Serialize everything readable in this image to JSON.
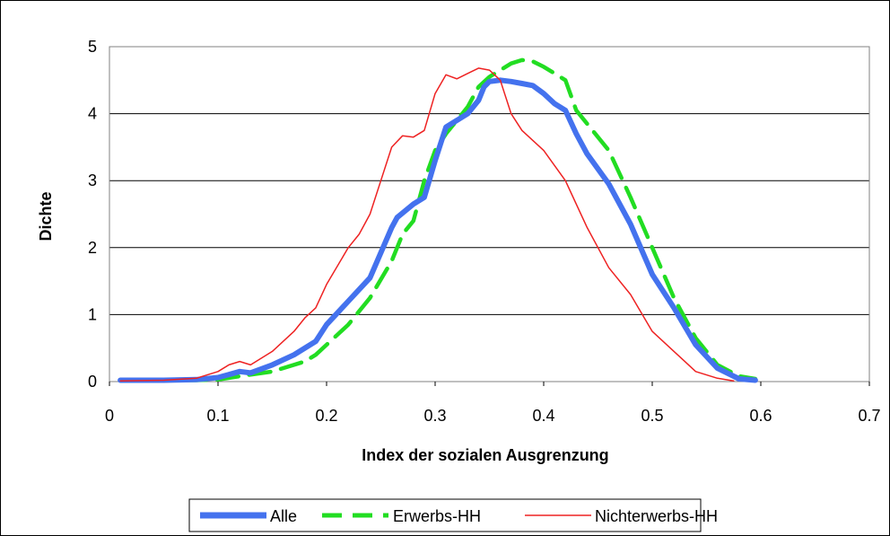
{
  "chart_data": {
    "type": "line",
    "title": "",
    "xlabel": "Index der sozialen Ausgrenzung",
    "ylabel": "Dichte",
    "xlim": [
      0,
      0.7
    ],
    "ylim": [
      0,
      5
    ],
    "xticks": [
      "0",
      "0.1",
      "0.2",
      "0.3",
      "0.4",
      "0.5",
      "0.6",
      "0.7"
    ],
    "yticks": [
      "0",
      "1",
      "2",
      "3",
      "4",
      "5"
    ],
    "grid": "horizontal",
    "legend_position": "bottom",
    "series": [
      {
        "name": "Alle",
        "color": "#4472ee",
        "style": "solid-thick",
        "points": [
          [
            0.01,
            0.02
          ],
          [
            0.05,
            0.02
          ],
          [
            0.08,
            0.03
          ],
          [
            0.1,
            0.06
          ],
          [
            0.12,
            0.15
          ],
          [
            0.13,
            0.13
          ],
          [
            0.15,
            0.25
          ],
          [
            0.17,
            0.4
          ],
          [
            0.18,
            0.5
          ],
          [
            0.19,
            0.6
          ],
          [
            0.2,
            0.85
          ],
          [
            0.22,
            1.2
          ],
          [
            0.24,
            1.55
          ],
          [
            0.26,
            2.3
          ],
          [
            0.265,
            2.45
          ],
          [
            0.28,
            2.65
          ],
          [
            0.29,
            2.75
          ],
          [
            0.3,
            3.3
          ],
          [
            0.31,
            3.8
          ],
          [
            0.32,
            3.9
          ],
          [
            0.33,
            4.0
          ],
          [
            0.34,
            4.2
          ],
          [
            0.345,
            4.4
          ],
          [
            0.35,
            4.48
          ],
          [
            0.36,
            4.5
          ],
          [
            0.37,
            4.48
          ],
          [
            0.38,
            4.45
          ],
          [
            0.39,
            4.42
          ],
          [
            0.4,
            4.3
          ],
          [
            0.41,
            4.15
          ],
          [
            0.42,
            4.05
          ],
          [
            0.43,
            3.7
          ],
          [
            0.44,
            3.4
          ],
          [
            0.46,
            2.95
          ],
          [
            0.48,
            2.35
          ],
          [
            0.5,
            1.6
          ],
          [
            0.52,
            1.1
          ],
          [
            0.54,
            0.55
          ],
          [
            0.56,
            0.2
          ],
          [
            0.58,
            0.04
          ],
          [
            0.595,
            0.02
          ]
        ]
      },
      {
        "name": "Erwerbs-HH",
        "color": "#22dd22",
        "style": "dashed-thick",
        "points": [
          [
            0.01,
            0.02
          ],
          [
            0.08,
            0.02
          ],
          [
            0.1,
            0.03
          ],
          [
            0.12,
            0.08
          ],
          [
            0.15,
            0.15
          ],
          [
            0.18,
            0.3
          ],
          [
            0.19,
            0.4
          ],
          [
            0.2,
            0.55
          ],
          [
            0.22,
            0.85
          ],
          [
            0.24,
            1.25
          ],
          [
            0.26,
            1.8
          ],
          [
            0.27,
            2.2
          ],
          [
            0.28,
            2.4
          ],
          [
            0.29,
            3.0
          ],
          [
            0.3,
            3.45
          ],
          [
            0.31,
            3.7
          ],
          [
            0.32,
            3.9
          ],
          [
            0.33,
            4.1
          ],
          [
            0.34,
            4.4
          ],
          [
            0.35,
            4.55
          ],
          [
            0.36,
            4.65
          ],
          [
            0.37,
            4.75
          ],
          [
            0.38,
            4.8
          ],
          [
            0.39,
            4.78
          ],
          [
            0.4,
            4.7
          ],
          [
            0.41,
            4.6
          ],
          [
            0.42,
            4.5
          ],
          [
            0.43,
            4.05
          ],
          [
            0.44,
            3.85
          ],
          [
            0.46,
            3.45
          ],
          [
            0.48,
            2.75
          ],
          [
            0.5,
            2.0
          ],
          [
            0.52,
            1.25
          ],
          [
            0.54,
            0.65
          ],
          [
            0.56,
            0.25
          ],
          [
            0.58,
            0.08
          ],
          [
            0.595,
            0.04
          ]
        ]
      },
      {
        "name": "Nichterwerbs-HH",
        "color": "#ee2222",
        "style": "solid-thin",
        "points": [
          [
            0.01,
            0.01
          ],
          [
            0.05,
            0.02
          ],
          [
            0.08,
            0.05
          ],
          [
            0.1,
            0.15
          ],
          [
            0.11,
            0.25
          ],
          [
            0.12,
            0.3
          ],
          [
            0.13,
            0.25
          ],
          [
            0.14,
            0.35
          ],
          [
            0.15,
            0.45
          ],
          [
            0.17,
            0.75
          ],
          [
            0.18,
            0.95
          ],
          [
            0.19,
            1.1
          ],
          [
            0.2,
            1.45
          ],
          [
            0.22,
            2.0
          ],
          [
            0.23,
            2.2
          ],
          [
            0.24,
            2.5
          ],
          [
            0.25,
            3.0
          ],
          [
            0.26,
            3.5
          ],
          [
            0.27,
            3.67
          ],
          [
            0.28,
            3.65
          ],
          [
            0.29,
            3.75
          ],
          [
            0.3,
            4.3
          ],
          [
            0.31,
            4.58
          ],
          [
            0.32,
            4.52
          ],
          [
            0.33,
            4.6
          ],
          [
            0.34,
            4.68
          ],
          [
            0.35,
            4.65
          ],
          [
            0.36,
            4.5
          ],
          [
            0.37,
            4.0
          ],
          [
            0.38,
            3.75
          ],
          [
            0.4,
            3.45
          ],
          [
            0.42,
            3.0
          ],
          [
            0.44,
            2.3
          ],
          [
            0.46,
            1.7
          ],
          [
            0.48,
            1.3
          ],
          [
            0.5,
            0.75
          ],
          [
            0.52,
            0.45
          ],
          [
            0.53,
            0.3
          ],
          [
            0.54,
            0.15
          ],
          [
            0.56,
            0.05
          ],
          [
            0.575,
            0.01
          ]
        ]
      }
    ]
  }
}
